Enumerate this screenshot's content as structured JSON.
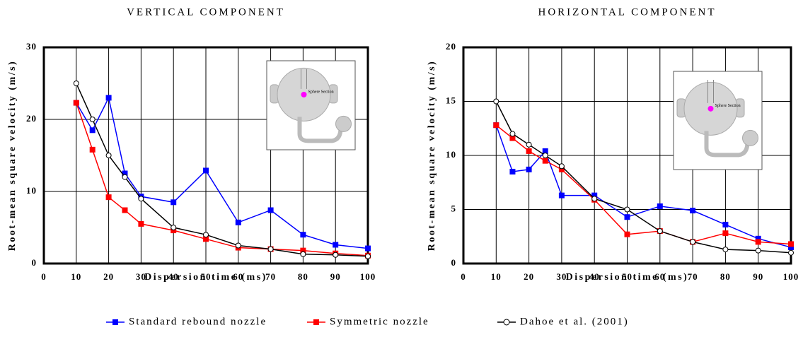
{
  "chart_data": [
    {
      "type": "line",
      "title": "VERTICAL COMPONENT",
      "xlabel": "Dispersion time (ms)",
      "ylabel": "Root-mean square velocity (m/s)",
      "inset_label": "Sphere Section",
      "x": [
        10,
        15,
        20,
        25,
        30,
        40,
        50,
        60,
        70,
        80,
        90,
        100
      ],
      "xlim": [
        0,
        100
      ],
      "xticks": [
        0,
        10,
        20,
        30,
        40,
        50,
        60,
        70,
        80,
        90,
        100
      ],
      "ylim": [
        0,
        30
      ],
      "yticks": [
        0,
        10,
        20,
        30
      ],
      "grid": true,
      "series": [
        {
          "name": "Standard rebound nozzle",
          "color": "#0000ff",
          "marker": "square",
          "values": [
            22.3,
            18.5,
            23,
            12.5,
            9.3,
            8.5,
            12.9,
            5.7,
            7.4,
            4.0,
            2.6,
            2.1
          ]
        },
        {
          "name": "Symmetric nozzle",
          "color": "#ff0000",
          "marker": "square",
          "values": [
            22.3,
            15.8,
            9.2,
            7.4,
            5.5,
            4.6,
            3.4,
            2.2,
            2.0,
            1.8,
            1.4,
            1.1
          ]
        },
        {
          "name": "Dahoe et al. (2001)",
          "color": "#000000",
          "marker": "circle",
          "values": [
            25,
            20,
            15,
            12,
            9,
            5,
            4,
            2.5,
            2.0,
            1.3,
            1.2,
            1.0
          ]
        }
      ]
    },
    {
      "type": "line",
      "title": "HORIZONTAL COMPONENT",
      "xlabel": "Dispersion time (ms)",
      "ylabel": "Root-mean square velocity (m/s)",
      "inset_label": "Sphere Section",
      "x": [
        10,
        15,
        20,
        25,
        30,
        40,
        50,
        60,
        70,
        80,
        90,
        100
      ],
      "xlim": [
        0,
        100
      ],
      "xticks": [
        0,
        10,
        20,
        30,
        40,
        50,
        60,
        70,
        80,
        90,
        100
      ],
      "ylim": [
        0,
        20
      ],
      "yticks": [
        0,
        5,
        10,
        15,
        20
      ],
      "grid": true,
      "series": [
        {
          "name": "Standard rebound nozzle",
          "color": "#0000ff",
          "marker": "square",
          "values": [
            12.8,
            8.5,
            8.7,
            10.4,
            6.3,
            6.3,
            4.3,
            5.3,
            4.9,
            3.6,
            2.3,
            1.5
          ]
        },
        {
          "name": "Symmetric nozzle",
          "color": "#ff0000",
          "marker": "square",
          "values": [
            12.8,
            11.6,
            10.4,
            9.5,
            8.7,
            5.9,
            2.7,
            3.0,
            2.0,
            2.8,
            2.0,
            1.8
          ]
        },
        {
          "name": "Dahoe et al. (2001)",
          "color": "#000000",
          "marker": "circle",
          "values": [
            15,
            12,
            11,
            10,
            9,
            6,
            5,
            3,
            2,
            1.3,
            1.2,
            1.0
          ]
        }
      ]
    }
  ]
}
